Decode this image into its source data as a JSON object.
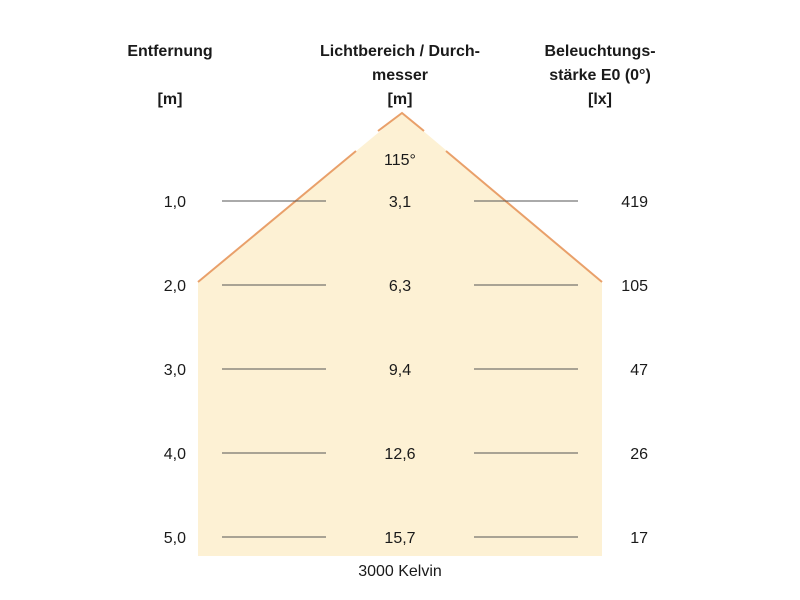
{
  "headers": {
    "distance": {
      "line1": "Entfernung",
      "unit": "[m]"
    },
    "diameter": {
      "line1": "Lichtbereich / Durch-",
      "line2": "messer",
      "unit": "[m]"
    },
    "illuminance": {
      "line1": "Beleuchtungs-",
      "line2": "stärke E0 (0°)",
      "unit": "[lx]"
    }
  },
  "beam_angle": "115°",
  "rows": [
    {
      "distance": "1,0",
      "diameter": "3,1",
      "illuminance": "419"
    },
    {
      "distance": "2,0",
      "diameter": "6,3",
      "illuminance": "105"
    },
    {
      "distance": "3,0",
      "diameter": "9,4",
      "illuminance": "47"
    },
    {
      "distance": "4,0",
      "diameter": "12,6",
      "illuminance": "26"
    },
    {
      "distance": "5,0",
      "diameter": "15,7",
      "illuminance": "17"
    }
  ],
  "footer": "3000 Kelvin",
  "colors": {
    "beam_fill": "#fdf1d4",
    "beam_edge": "#e9a06a",
    "row_line": "#555555"
  }
}
